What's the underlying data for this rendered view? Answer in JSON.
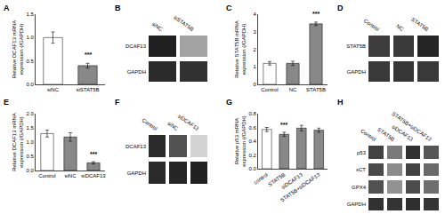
{
  "chart_data": [
    {
      "type": "bar",
      "title": "A",
      "categories": [
        "siNC",
        "siSTAT5B"
      ],
      "values": [
        1.0,
        0.4
      ],
      "errors": [
        0.12,
        0.05
      ],
      "colors": [
        "white",
        "#888888"
      ],
      "ylabel": "Relative DCAF13 mRNA\nexpression (/GAPDH)",
      "ylim": [
        0.0,
        1.5
      ],
      "yticks": [
        {
          "value": 0.0,
          "label": "0.0"
        },
        0.5,
        {
          "value": 1.0,
          "label": "1.0"
        },
        1.5
      ],
      "annotations": [
        {
          "category": "siSTAT5B",
          "text": "***"
        }
      ],
      "grid": false
    },
    {
      "type": "heatmap",
      "title": "B",
      "x": [
        "siNC",
        "siSTAT5B"
      ],
      "y": [
        "DCAF13",
        "GAPDH"
      ],
      "values": [
        [
          0.92,
          0.38
        ],
        [
          0.88,
          0.85
        ]
      ],
      "zlim": [
        0,
        1
      ]
    },
    {
      "type": "bar",
      "title": "C",
      "categories": [
        "Control",
        "NC",
        "STAT5B"
      ],
      "values": [
        1.2,
        1.2,
        3.45
      ],
      "errors": [
        0.1,
        0.12,
        0.1
      ],
      "colors": [
        "white",
        "#888888",
        "#888888"
      ],
      "ylabel": "Relative STAT5B mRNA\nexpression (/GAPDH)",
      "ylim": [
        0.0,
        4.0
      ],
      "yticks": [
        0,
        1,
        2,
        3,
        4
      ],
      "annotations": [
        {
          "category": "STAT5B",
          "text": "***"
        }
      ],
      "grid": false
    },
    {
      "type": "heatmap",
      "title": "D",
      "x": [
        "Control",
        "NC",
        "STAT5B"
      ],
      "y": [
        "STAT5B",
        "GAPDH"
      ],
      "values": [
        [
          0.8,
          0.82,
          0.9
        ],
        [
          0.82,
          0.83,
          0.82
        ]
      ],
      "zlim": [
        0,
        1
      ]
    },
    {
      "type": "bar",
      "title": "E",
      "categories": [
        "Control",
        "siNC",
        "siDCAF13"
      ],
      "values": [
        1.3,
        1.18,
        0.27
      ],
      "errors": [
        0.12,
        0.15,
        0.04
      ],
      "colors": [
        "white",
        "#888888",
        "#888888"
      ],
      "ylabel": "Relative DCAF13 mRNA\nexpression (/GAPDH)",
      "ylim": [
        0.0,
        2.0
      ],
      "yticks": [
        {
          "value": 0.0,
          "label": "0.0"
        },
        0.5,
        {
          "value": 1.0,
          "label": "1.0"
        },
        1.5,
        {
          "value": 2.0,
          "label": "2.0"
        }
      ],
      "annotations": [
        {
          "category": "siDCAF13",
          "text": "***"
        }
      ],
      "grid": false
    },
    {
      "type": "heatmap",
      "title": "F",
      "x": [
        "Control",
        "siNC",
        "siDCAF13"
      ],
      "y": [
        "DCAF13",
        "GAPDH"
      ],
      "values": [
        [
          0.88,
          0.72,
          0.18
        ],
        [
          0.88,
          0.9,
          0.92
        ]
      ],
      "zlim": [
        0,
        1
      ]
    },
    {
      "type": "bar",
      "title": "G",
      "categories": [
        "control",
        "STAT5B",
        "siDCAF13",
        "STAT5B+siDCAF13"
      ],
      "values": [
        0.57,
        0.5,
        0.59,
        0.56
      ],
      "errors": [
        0.03,
        0.03,
        0.04,
        0.03
      ],
      "colors": [
        "white",
        "#888888",
        "#888888",
        "#888888"
      ],
      "ylabel": "Relative p53 mRNA\nexpression (/GAPDH)",
      "ylim": [
        0.0,
        0.8
      ],
      "yticks": [
        {
          "value": 0.0,
          "label": "0.0"
        },
        0.2,
        0.4,
        0.6,
        0.8
      ],
      "annotations": [
        {
          "category": "STAT5B",
          "text": "***"
        }
      ],
      "grid": false
    },
    {
      "type": "heatmap",
      "title": "H",
      "x": [
        "Control",
        "STAT5B",
        "siDCAF13",
        "STAT5B+siDCAF13"
      ],
      "y": [
        "p53",
        "xCT",
        "GPX4",
        "GAPDH"
      ],
      "values": [
        [
          0.78,
          0.55,
          0.85,
          0.7
        ],
        [
          0.75,
          0.48,
          0.78,
          0.62
        ],
        [
          0.72,
          0.45,
          0.74,
          0.6
        ],
        [
          0.85,
          0.84,
          0.86,
          0.84
        ]
      ],
      "zlim": [
        0,
        1
      ]
    }
  ]
}
